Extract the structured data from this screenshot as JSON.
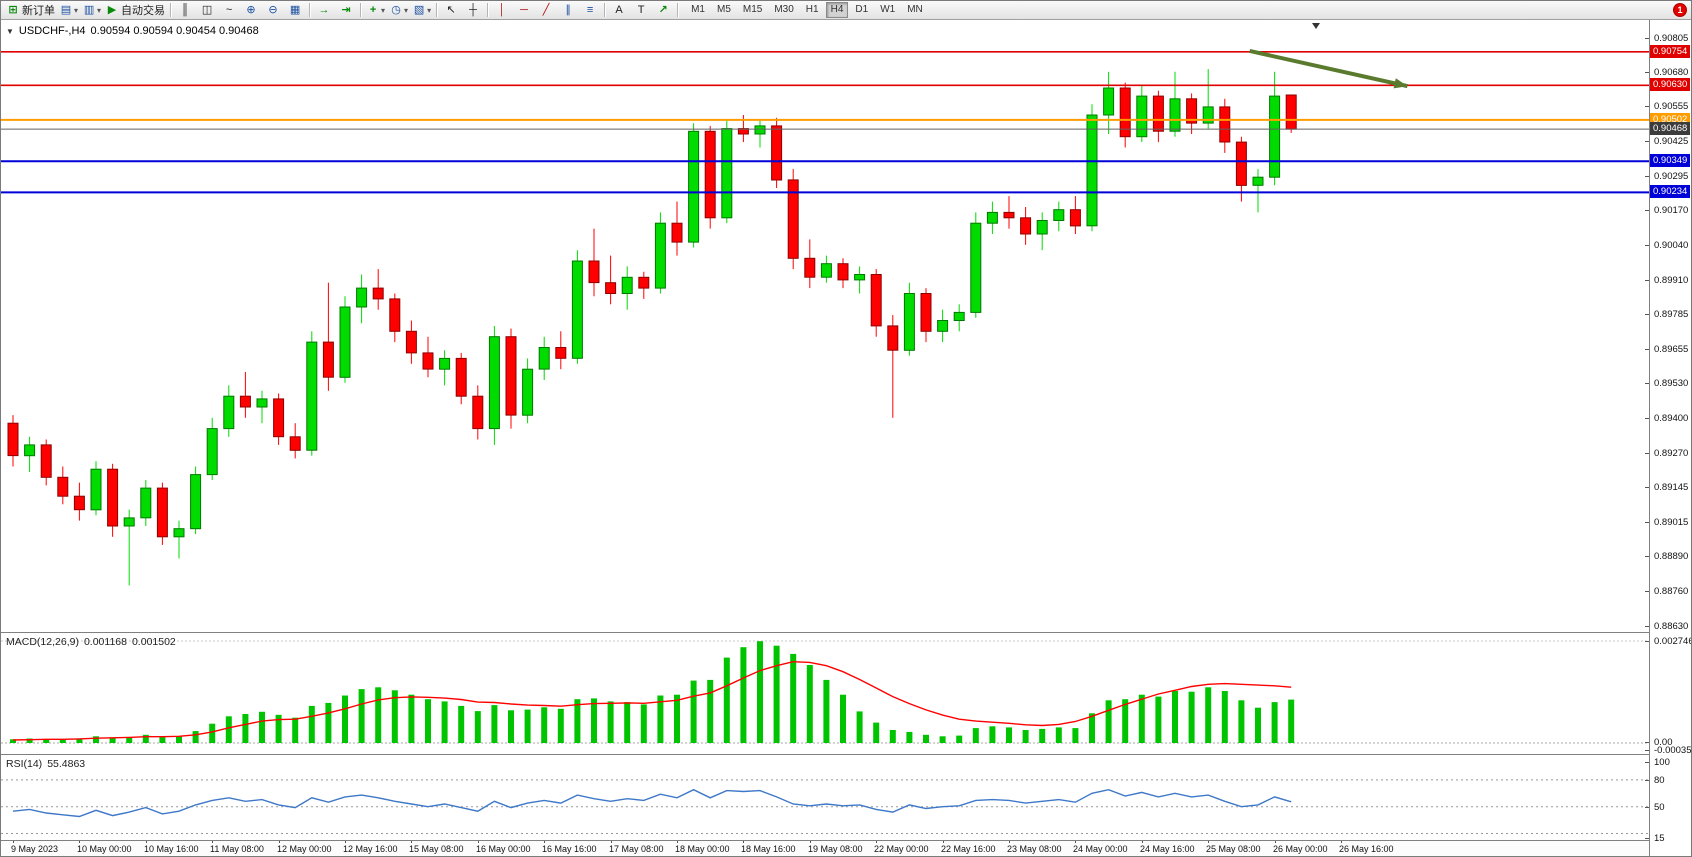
{
  "toolbar": {
    "new_order_label": "新订单",
    "autotrading_label": "自动交易",
    "timeframes": [
      "M1",
      "M5",
      "M15",
      "M30",
      "H1",
      "H4",
      "D1",
      "W1",
      "MN"
    ],
    "active_timeframe": "H4",
    "alert_count": "1",
    "icons": {
      "new_order": "⊞",
      "new_chart": "▤",
      "profiles": "▥",
      "autotrading": "▶",
      "bar_chart": "║",
      "candle_chart": "◫",
      "line_chart": "~",
      "zoom_in": "⊕",
      "zoom_out": "⊖",
      "tile_windows": "▦",
      "auto_scroll": "→",
      "chart_shift": "⇥",
      "add_indicator": "+",
      "periods": "◷",
      "templates": "▧",
      "cursor": "↖",
      "crosshair": "┼",
      "vertical_line": "│",
      "horizontal_line": "─",
      "trendline": "╱",
      "channel": "∥",
      "fibonacci": "≡",
      "text": "A",
      "text_label": "T",
      "arrows": "↗",
      "caret": "▾",
      "one_click": "▼"
    }
  },
  "chart_data": [
    {
      "type": "candlestick",
      "title": "USDCHF-,H4",
      "ohlc_display": "0.90594 0.90594 0.90454 0.90468",
      "up_color": "#00dc00",
      "up_border": "#007800",
      "down_color": "#ff0000",
      "down_border": "#8e0000",
      "ylim": [
        0.8856,
        0.9086
      ],
      "y_axis_ticks": [
        "0.90805",
        "0.90680",
        "0.90555",
        "0.90425",
        "0.90295",
        "0.90170",
        "0.90040",
        "0.89910",
        "0.89785",
        "0.89655",
        "0.89530",
        "0.89400",
        "0.89270",
        "0.89145",
        "0.89015",
        "0.88890",
        "0.88760",
        "0.88630"
      ],
      "levels": [
        {
          "value": "0.90754",
          "price": 0.90754,
          "bg": "#e00000",
          "line_color": "#e00000",
          "line_width": 1.6,
          "type": "resistance-line"
        },
        {
          "value": "0.90630",
          "price": 0.9063,
          "bg": "#e00000",
          "line_color": "#e00000",
          "line_width": 1.6,
          "type": "resistance-line"
        },
        {
          "value": "0.90502",
          "price": 0.90502,
          "bg": "#ff9c00",
          "line_color": "#ff9c00",
          "line_width": 2,
          "type": "pivot-line"
        },
        {
          "value": "0.90468",
          "price": 0.90468,
          "bg": "#3c3c3c",
          "line_color": "#606060",
          "line_width": 1,
          "type": "bid-price-line"
        },
        {
          "value": "0.90349",
          "price": 0.90349,
          "bg": "#0000d8",
          "line_color": "#0000d8",
          "line_width": 2,
          "type": "support-line"
        },
        {
          "value": "0.90234",
          "price": 0.90234,
          "bg": "#0000d8",
          "line_color": "#0000d8",
          "line_width": 2,
          "type": "support-line"
        }
      ],
      "trend_arrow": {
        "from": {
          "index": 74.5,
          "price": 0.90757
        },
        "to": {
          "index": 84,
          "price": 0.90627
        },
        "color": "#5a7a2e"
      },
      "x_labels": [
        "9 May 2023",
        "10 May 00:00",
        "10 May 16:00",
        "11 May 08:00",
        "12 May 00:00",
        "12 May 16:00",
        "15 May 08:00",
        "16 May 00:00",
        "16 May 16:00",
        "17 May 08:00",
        "18 May 00:00",
        "18 May 16:00",
        "19 May 08:00",
        "22 May 00:00",
        "22 May 16:00",
        "23 May 08:00",
        "24 May 00:00",
        "24 May 16:00",
        "25 May 08:00",
        "26 May 00:00",
        "26 May 16:00"
      ],
      "candles": [
        [
          0.8938,
          0.8941,
          0.8922,
          0.8926
        ],
        [
          0.8926,
          0.8933,
          0.892,
          0.893
        ],
        [
          0.893,
          0.8932,
          0.8915,
          0.8918
        ],
        [
          0.8918,
          0.8922,
          0.8908,
          0.8911
        ],
        [
          0.8911,
          0.8916,
          0.8902,
          0.8906
        ],
        [
          0.8906,
          0.8924,
          0.8904,
          0.8921
        ],
        [
          0.8921,
          0.8923,
          0.8896,
          0.89
        ],
        [
          0.89,
          0.8906,
          0.8878,
          0.8903
        ],
        [
          0.8903,
          0.8917,
          0.89,
          0.8914
        ],
        [
          0.8914,
          0.8916,
          0.8893,
          0.8896
        ],
        [
          0.8896,
          0.8902,
          0.8888,
          0.8899
        ],
        [
          0.8899,
          0.8922,
          0.8897,
          0.8919
        ],
        [
          0.8919,
          0.894,
          0.8917,
          0.8936
        ],
        [
          0.8936,
          0.8952,
          0.8933,
          0.8948
        ],
        [
          0.8948,
          0.8957,
          0.894,
          0.8944
        ],
        [
          0.8944,
          0.895,
          0.8938,
          0.8947
        ],
        [
          0.8947,
          0.8949,
          0.893,
          0.8933
        ],
        [
          0.8933,
          0.8938,
          0.8925,
          0.8928
        ],
        [
          0.8928,
          0.8972,
          0.8926,
          0.8968
        ],
        [
          0.8968,
          0.899,
          0.895,
          0.8955
        ],
        [
          0.8955,
          0.8985,
          0.8953,
          0.8981
        ],
        [
          0.8981,
          0.8993,
          0.8975,
          0.8988
        ],
        [
          0.8988,
          0.8995,
          0.898,
          0.8984
        ],
        [
          0.8984,
          0.8986,
          0.8968,
          0.8972
        ],
        [
          0.8972,
          0.8976,
          0.896,
          0.8964
        ],
        [
          0.8964,
          0.897,
          0.8955,
          0.8958
        ],
        [
          0.8958,
          0.8965,
          0.8952,
          0.8962
        ],
        [
          0.8962,
          0.8964,
          0.8945,
          0.8948
        ],
        [
          0.8948,
          0.8952,
          0.8932,
          0.8936
        ],
        [
          0.8936,
          0.8974,
          0.893,
          0.897
        ],
        [
          0.897,
          0.8973,
          0.8936,
          0.8941
        ],
        [
          0.8941,
          0.8962,
          0.8938,
          0.8958
        ],
        [
          0.8958,
          0.897,
          0.8954,
          0.8966
        ],
        [
          0.8966,
          0.8972,
          0.8958,
          0.8962
        ],
        [
          0.8962,
          0.9002,
          0.896,
          0.8998
        ],
        [
          0.8998,
          0.901,
          0.8985,
          0.899
        ],
        [
          0.899,
          0.9,
          0.8982,
          0.8986
        ],
        [
          0.8986,
          0.8996,
          0.898,
          0.8992
        ],
        [
          0.8992,
          0.8994,
          0.8984,
          0.8988
        ],
        [
          0.8988,
          0.9016,
          0.8986,
          0.9012
        ],
        [
          0.9012,
          0.902,
          0.9,
          0.9005
        ],
        [
          0.9005,
          0.9049,
          0.9003,
          0.9046
        ],
        [
          0.9046,
          0.9048,
          0.901,
          0.9014
        ],
        [
          0.9014,
          0.905,
          0.9012,
          0.9047
        ],
        [
          0.9047,
          0.9052,
          0.9042,
          0.9045
        ],
        [
          0.9045,
          0.905,
          0.904,
          0.9048
        ],
        [
          0.9048,
          0.9051,
          0.9025,
          0.9028
        ],
        [
          0.9028,
          0.9032,
          0.8995,
          0.8999
        ],
        [
          0.8999,
          0.9006,
          0.8988,
          0.8992
        ],
        [
          0.8992,
          0.9,
          0.899,
          0.8997
        ],
        [
          0.8997,
          0.8999,
          0.8988,
          0.8991
        ],
        [
          0.8991,
          0.8996,
          0.8986,
          0.8993
        ],
        [
          0.8993,
          0.8995,
          0.897,
          0.8974
        ],
        [
          0.8974,
          0.8978,
          0.894,
          0.8965
        ],
        [
          0.8965,
          0.899,
          0.8963,
          0.8986
        ],
        [
          0.8986,
          0.8988,
          0.8968,
          0.8972
        ],
        [
          0.8972,
          0.898,
          0.8968,
          0.8976
        ],
        [
          0.8976,
          0.8982,
          0.8972,
          0.8979
        ],
        [
          0.8979,
          0.9016,
          0.8977,
          0.9012
        ],
        [
          0.9012,
          0.902,
          0.9008,
          0.9016
        ],
        [
          0.9016,
          0.9022,
          0.901,
          0.9014
        ],
        [
          0.9014,
          0.9018,
          0.9004,
          0.9008
        ],
        [
          0.9008,
          0.9016,
          0.9002,
          0.9013
        ],
        [
          0.9013,
          0.902,
          0.9009,
          0.9017
        ],
        [
          0.9017,
          0.9022,
          0.9008,
          0.9011
        ],
        [
          0.9011,
          0.9056,
          0.9009,
          0.9052
        ],
        [
          0.9052,
          0.9068,
          0.9045,
          0.9062
        ],
        [
          0.9062,
          0.9064,
          0.904,
          0.9044
        ],
        [
          0.9044,
          0.9063,
          0.9042,
          0.9059
        ],
        [
          0.9059,
          0.9061,
          0.9042,
          0.9046
        ],
        [
          0.9046,
          0.9068,
          0.9044,
          0.9058
        ],
        [
          0.9058,
          0.906,
          0.9045,
          0.9049
        ],
        [
          0.9049,
          0.9069,
          0.9047,
          0.9055
        ],
        [
          0.9055,
          0.9058,
          0.9038,
          0.9042
        ],
        [
          0.9042,
          0.9044,
          0.902,
          0.9026
        ],
        [
          0.9026,
          0.9032,
          0.9016,
          0.9029
        ],
        [
          0.9029,
          0.9068,
          0.9026,
          0.9059
        ],
        [
          0.90594,
          0.90594,
          0.90454,
          0.90468
        ]
      ]
    },
    {
      "type": "macd",
      "label": "MACD(12,26,9)",
      "value_main": "0.001168",
      "value_signal": "0.001502",
      "hist_color": "#00c400",
      "signal_color": "#ff0000",
      "y_axis_ticks": [
        "0.002746",
        "0.00",
        "-0.000355"
      ],
      "histogram": [
        0.0001,
        0.00012,
        0.0001,
        8e-05,
        0.0001,
        0.00018,
        0.00014,
        0.00016,
        0.00022,
        0.00016,
        0.00018,
        0.00032,
        0.00052,
        0.00072,
        0.00078,
        0.00084,
        0.00076,
        0.00068,
        0.001,
        0.00108,
        0.00128,
        0.00145,
        0.0015,
        0.00142,
        0.0013,
        0.00118,
        0.00112,
        0.001,
        0.00086,
        0.00102,
        0.00088,
        0.0009,
        0.00096,
        0.00092,
        0.00118,
        0.0012,
        0.00112,
        0.0011,
        0.00104,
        0.00128,
        0.0013,
        0.00168,
        0.0017,
        0.0023,
        0.00258,
        0.00274,
        0.00262,
        0.0024,
        0.0021,
        0.0017,
        0.0013,
        0.00085,
        0.00055,
        0.00035,
        0.0003,
        0.00022,
        0.00018,
        0.0002,
        0.0004,
        0.00045,
        0.00042,
        0.00035,
        0.00038,
        0.00042,
        0.0004,
        0.0008,
        0.00115,
        0.00118,
        0.0013,
        0.00125,
        0.0014,
        0.00138,
        0.0015,
        0.0014,
        0.00115,
        0.00095,
        0.0011,
        0.001168
      ],
      "signal": [
        8e-05,
        9e-05,
        0.0001,
        0.0001,
        0.00011,
        0.00013,
        0.00014,
        0.00015,
        0.00017,
        0.00017,
        0.00018,
        0.00022,
        0.0003,
        0.00041,
        0.0005,
        0.00059,
        0.00063,
        0.00064,
        0.00072,
        0.00081,
        0.00092,
        0.00105,
        0.00116,
        0.00122,
        0.00124,
        0.00123,
        0.00121,
        0.00117,
        0.0011,
        0.00109,
        0.00105,
        0.00102,
        0.00101,
        0.00099,
        0.00103,
        0.00106,
        0.00107,
        0.00108,
        0.00107,
        0.00111,
        0.00115,
        0.00126,
        0.00135,
        0.00154,
        0.00175,
        0.00195,
        0.00208,
        0.00219,
        0.00217,
        0.00208,
        0.00192,
        0.00171,
        0.00148,
        0.00125,
        0.00106,
        0.00089,
        0.00075,
        0.00064,
        0.00059,
        0.00056,
        0.00053,
        0.00049,
        0.00047,
        0.0005,
        0.00058,
        0.00072,
        0.00088,
        0.00104,
        0.00118,
        0.00132,
        0.00142,
        0.00152,
        0.00158,
        0.0016,
        0.00158,
        0.00156,
        0.00154,
        0.001502
      ]
    },
    {
      "type": "rsi",
      "label": "RSI(14)",
      "value": "55.4863",
      "line_color": "#3e78c8",
      "levels": [
        80,
        50,
        20
      ],
      "y_axis_ticks": [
        "100",
        "80",
        "50",
        "15"
      ],
      "values": [
        45,
        47,
        43,
        41,
        39,
        46,
        40,
        44,
        49,
        42,
        45,
        52,
        57,
        60,
        56,
        58,
        52,
        49,
        60,
        55,
        61,
        63,
        60,
        56,
        53,
        50,
        53,
        49,
        45,
        56,
        49,
        54,
        57,
        54,
        63,
        59,
        56,
        59,
        57,
        64,
        60,
        69,
        60,
        68,
        67,
        68,
        61,
        53,
        51,
        53,
        51,
        52,
        47,
        44,
        52,
        48,
        50,
        51,
        57,
        58,
        57,
        54,
        56,
        58,
        55,
        65,
        69,
        62,
        66,
        61,
        65,
        61,
        63,
        56,
        50,
        52,
        61,
        55.49
      ]
    }
  ]
}
